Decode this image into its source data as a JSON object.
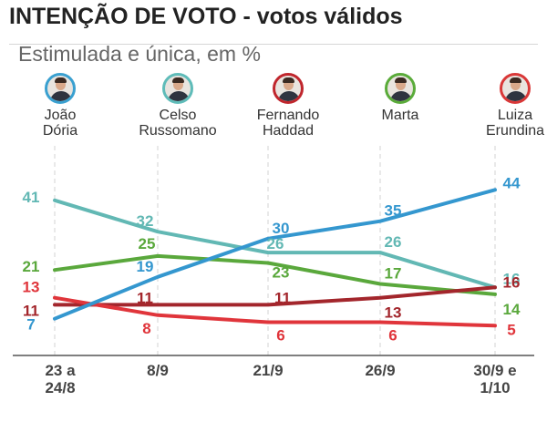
{
  "title": "INTENÇÃO DE VOTO - votos válidos",
  "subtitle": "Estimulada e única, em %",
  "candidates": [
    {
      "name": "João\nDória",
      "color": "#3aa0d0",
      "icon": "avatar-joao-doria"
    },
    {
      "name": "Celso\nRussomano",
      "color": "#5fbcb9",
      "icon": "avatar-celso-russomano"
    },
    {
      "name": "Fernando\nHaddad",
      "color": "#c0262d",
      "icon": "avatar-fernando-haddad"
    },
    {
      "name": "Marta",
      "color": "#5aab3a",
      "icon": "avatar-marta"
    },
    {
      "name": "Luiza\nErundina",
      "color": "#d93838",
      "icon": "avatar-luiza-erundina"
    }
  ],
  "chart_data": {
    "type": "line",
    "title": "INTENÇÃO DE VOTO - votos válidos",
    "subtitle": "Estimulada e única, em %",
    "categories": [
      "23 a\n24/8",
      "8/9",
      "21/9",
      "26/9",
      "30/9 e\n1/10"
    ],
    "grid": true,
    "series": [
      {
        "name": "Celso Russomano",
        "color": "#62b8b4",
        "values": [
          41,
          32,
          26,
          26,
          16
        ]
      },
      {
        "name": "Marta",
        "color": "#5aa83c",
        "values": [
          21,
          25,
          23,
          17,
          14
        ]
      },
      {
        "name": "Fernando Haddad",
        "color": "#a3262c",
        "values": [
          11,
          11,
          11,
          13,
          16
        ]
      },
      {
        "name": "Luiza Erundina",
        "color": "#e0353b",
        "values": [
          13,
          8,
          6,
          6,
          5
        ]
      },
      {
        "name": "João Dória",
        "color": "#3497cf",
        "values": [
          7,
          19,
          30,
          35,
          44
        ]
      }
    ]
  }
}
